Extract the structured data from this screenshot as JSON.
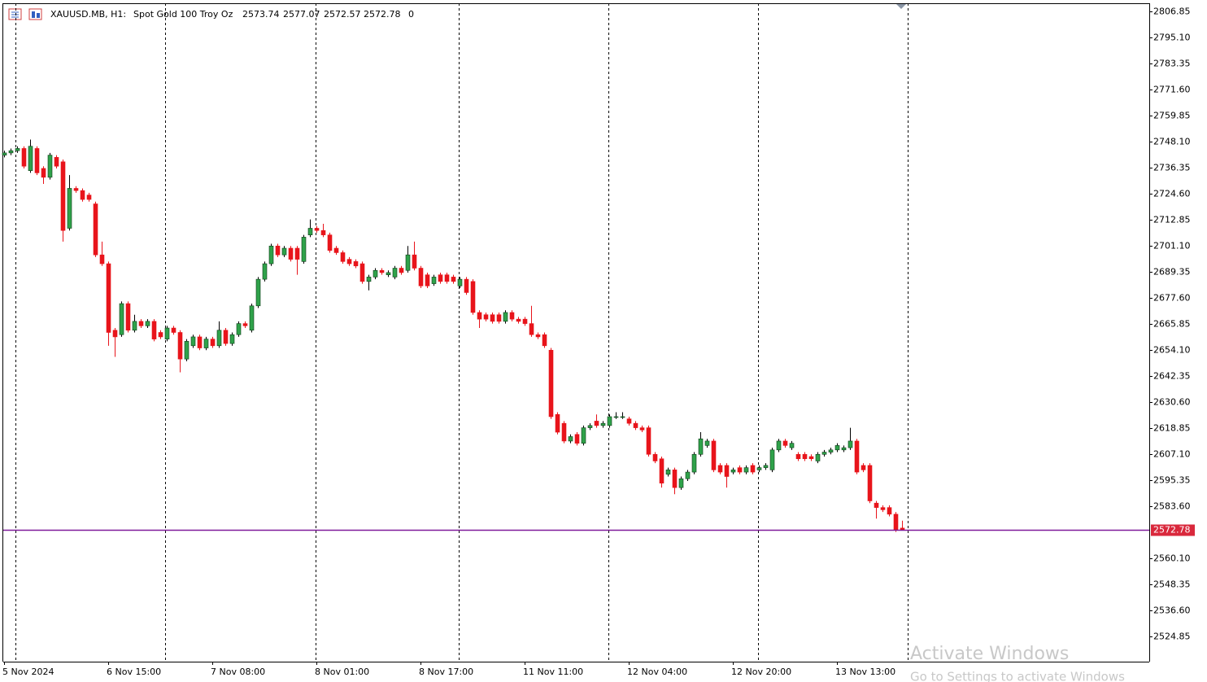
{
  "chart_data": {
    "type": "candlestick",
    "title": "XAUUSD.MB, H1:",
    "subtitle": "Spot Gold 100 Troy Oz",
    "volume": 0,
    "watermark": "Activate Windows",
    "watermark_note": "Go to Settings to activate Windows",
    "categories": [
      "5 Nov 2024",
      null,
      null,
      null,
      null,
      null,
      null,
      null,
      null,
      null,
      null,
      null,
      null,
      null,
      null,
      null,
      "6 Nov 15:00",
      null,
      null,
      null,
      null,
      null,
      null,
      null,
      null,
      null,
      null,
      null,
      null,
      null,
      null,
      null,
      "7 Nov 08:00",
      null,
      null,
      null,
      null,
      null,
      null,
      null,
      null,
      null,
      null,
      null,
      null,
      null,
      null,
      null,
      "8 Nov 01:00",
      null,
      null,
      null,
      null,
      null,
      null,
      null,
      null,
      null,
      null,
      null,
      null,
      null,
      null,
      null,
      "8 Nov 17:00",
      null,
      null,
      null,
      null,
      null,
      null,
      null,
      null,
      null,
      null,
      null,
      null,
      null,
      null,
      null,
      "11 Nov 11:00",
      null,
      null,
      null,
      null,
      null,
      null,
      null,
      null,
      null,
      null,
      null,
      null,
      null,
      null,
      null,
      "12 Nov 04:00",
      null,
      null,
      null,
      null,
      null,
      null,
      null,
      null,
      null,
      null,
      null,
      null,
      null,
      null,
      null,
      "12 Nov 20:00",
      null,
      null,
      null,
      null,
      null,
      null,
      null,
      null,
      null,
      null,
      null,
      null,
      null,
      null,
      null,
      "13 Nov 13:00",
      null,
      null,
      null,
      null,
      null,
      null,
      null,
      null,
      null,
      null
    ],
    "open": [
      2742,
      2743,
      2744,
      2745,
      2735,
      2745,
      2736,
      2732,
      2741,
      2739,
      2709,
      2727,
      2726,
      2724,
      2720,
      2697,
      2693,
      2663,
      2661,
      2675,
      2663,
      2667,
      2665,
      2667,
      2662,
      2659,
      2664,
      2662,
      2650,
      2656,
      2660,
      2655,
      2659,
      2656,
      2663,
      2657,
      2661,
      2666,
      2663,
      2674,
      2686,
      2693,
      2701,
      2697,
      2700,
      2700,
      2694,
      2706,
      2709,
      2708,
      2706,
      2700,
      2698,
      2695,
      2694,
      2693,
      2685,
      2687,
      2690,
      2688,
      2687,
      2691,
      2690,
      2697,
      2691,
      2688,
      2684,
      2688,
      2688,
      2687,
      2683,
      2686,
      2685,
      2671,
      2670,
      2670,
      2670,
      2667,
      2671,
      2668,
      2668,
      2666,
      2661,
      2661,
      2654,
      2625,
      2621,
      2613,
      2616,
      2612,
      2619,
      2622,
      2620,
      2620,
      2624,
      2624,
      2623,
      2621,
      2619,
      2619,
      2607,
      2605,
      2598,
      2600,
      2592,
      2596,
      2599,
      2607,
      2611,
      2613,
      2602,
      2602,
      2599,
      2601,
      2599,
      2602,
      2600,
      2601,
      2600,
      2609,
      2613,
      2610,
      2607,
      2607,
      2606,
      2604,
      2607,
      2608,
      2609,
      2609,
      2610,
      2613,
      2602,
      2602,
      2585,
      2583,
      2583,
      2580,
      2573.74
    ],
    "high": [
      2744,
      2745,
      2746,
      2746,
      2749,
      2746,
      2737,
      2743,
      2742,
      2740,
      2733,
      2728,
      2727,
      2725,
      2721,
      2703,
      2694,
      2664,
      2676,
      2676,
      2670,
      2668,
      2668,
      2668,
      2663,
      2665,
      2665,
      2663,
      2659,
      2661,
      2661,
      2660,
      2660,
      2667,
      2664,
      2662,
      2667,
      2667,
      2675,
      2687,
      2694,
      2702,
      2702,
      2701,
      2701,
      2701,
      2706,
      2713,
      2710,
      2711,
      2707,
      2701,
      2699,
      2696,
      2695,
      2694,
      2688,
      2691,
      2691,
      2690,
      2692,
      2692,
      2701,
      2703,
      2692,
      2689,
      2688,
      2689,
      2689,
      2688,
      2687,
      2687,
      2686,
      2672,
      2671,
      2671,
      2671,
      2672,
      2672,
      2669,
      2669,
      2674,
      2662,
      2662,
      2655,
      2626,
      2622,
      2616,
      2617,
      2620,
      2621,
      2625,
      2622,
      2625,
      2626,
      2626,
      2624,
      2622,
      2620,
      2620,
      2608,
      2606,
      2601,
      2601,
      2597,
      2600,
      2608,
      2617,
      2614,
      2614,
      2603,
      2603,
      2601,
      2602,
      2602,
      2603,
      2602,
      2603,
      2610,
      2614,
      2614,
      2613,
      2608,
      2608,
      2607,
      2608,
      2609,
      2610,
      2612,
      2611,
      2619,
      2614,
      2603,
      2603,
      2586,
      2584,
      2584,
      2581,
      2577.07
    ],
    "low": [
      2741,
      2742,
      2743,
      2736,
      2734,
      2733,
      2729,
      2731,
      2736,
      2703,
      2708,
      2725,
      2721,
      2721,
      2696,
      2692,
      2656,
      2651,
      2660,
      2662,
      2662,
      2664,
      2664,
      2658,
      2659,
      2658,
      2661,
      2644,
      2649,
      2655,
      2654,
      2654,
      2655,
      2655,
      2656,
      2656,
      2660,
      2664,
      2662,
      2673,
      2685,
      2692,
      2696,
      2696,
      2694,
      2688,
      2693,
      2705,
      2707,
      2705,
      2698,
      2697,
      2693,
      2692,
      2691,
      2684,
      2681,
      2686,
      2688,
      2687,
      2686,
      2688,
      2689,
      2690,
      2682,
      2682,
      2683,
      2684,
      2684,
      2684,
      2682,
      2679,
      2670,
      2664,
      2667,
      2666,
      2666,
      2666,
      2667,
      2666,
      2665,
      2660,
      2659,
      2655,
      2623,
      2616,
      2612,
      2612,
      2611,
      2611,
      2618,
      2619,
      2619,
      2619,
      2623,
      2623,
      2620,
      2618,
      2617,
      2606,
      2603,
      2592,
      2597,
      2589,
      2591,
      2595,
      2598,
      2606,
      2610,
      2599,
      2598,
      2592,
      2598,
      2598,
      2598,
      2598,
      2599,
      2600,
      2599,
      2608,
      2610,
      2609,
      2604,
      2604,
      2604,
      2603,
      2606,
      2607,
      2608,
      2608,
      2609,
      2598,
      2599,
      2585,
      2578,
      2581,
      2579,
      2572,
      2572.57
    ],
    "close": [
      2743,
      2744,
      2745,
      2737,
      2746,
      2734,
      2732,
      2742,
      2737,
      2708,
      2727,
      2726,
      2722,
      2722,
      2697,
      2693,
      2662,
      2660,
      2675,
      2663,
      2667,
      2665,
      2667,
      2659,
      2660,
      2664,
      2662,
      2650,
      2658,
      2660,
      2655,
      2659,
      2656,
      2663,
      2657,
      2661,
      2666,
      2665,
      2674,
      2686,
      2693,
      2701,
      2697,
      2700,
      2695,
      2695,
      2705,
      2709,
      2708,
      2706,
      2699,
      2698,
      2694,
      2693,
      2692,
      2685,
      2687,
      2690,
      2689,
      2689,
      2691,
      2689,
      2697,
      2691,
      2683,
      2683,
      2687,
      2685,
      2685,
      2685,
      2686,
      2680,
      2671,
      2668,
      2668,
      2667,
      2667,
      2671,
      2668,
      2667,
      2666,
      2661,
      2660,
      2656,
      2624,
      2617,
      2613,
      2615,
      2612,
      2619,
      2620,
      2620,
      2621,
      2624,
      2624,
      2624,
      2621,
      2619,
      2618,
      2607,
      2604,
      2594,
      2600,
      2592,
      2596,
      2599,
      2607,
      2614,
      2613,
      2600,
      2599,
      2597,
      2600,
      2599,
      2601,
      2599,
      2601,
      2602,
      2609,
      2613,
      2611,
      2612,
      2605,
      2605,
      2605,
      2607,
      2608,
      2609,
      2611,
      2610,
      2613,
      2599,
      2600,
      2586,
      2583,
      2582,
      2580,
      2573,
      2572.78
    ],
    "up_color": "#2fa24a",
    "down_color": "#e8141b",
    "price_line_color": "#7f1a9a",
    "price_tag_color": "#d9283c",
    "grid": true,
    "ylim": [
      2513.47,
      2810.52
    ],
    "yticks": [
      2806.85,
      {
        "value": 2795.1,
        "label": "2795.10"
      },
      2783.35,
      {
        "value": 2771.6,
        "label": "2771.60"
      },
      2759.85,
      {
        "value": 2748.1,
        "label": "2748.10"
      },
      2736.35,
      {
        "value": 2724.6,
        "label": "2724.60"
      },
      2712.85,
      {
        "value": 2701.1,
        "label": "2701.10"
      },
      2689.35,
      {
        "value": 2677.6,
        "label": "2677.60"
      },
      2665.85,
      {
        "value": 2654.1,
        "label": "2654.10"
      },
      2642.35,
      {
        "value": 2630.6,
        "label": "2630.60"
      },
      2618.85,
      {
        "value": 2607.1,
        "label": "2607.10"
      },
      2595.35,
      {
        "value": 2583.6,
        "label": "2583.60"
      },
      {
        "value": 2560.1,
        "label": "2560.10"
      },
      2548.35,
      {
        "value": 2536.6,
        "label": "2536.60"
      },
      2524.85
    ]
  }
}
